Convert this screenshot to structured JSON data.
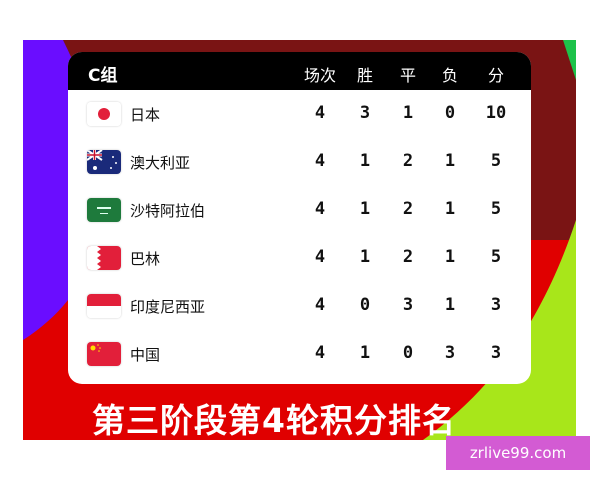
{
  "colors": {
    "header": "#000000",
    "purple": "#6a0dff",
    "dark_red": "#7a1414",
    "red": "#e00000",
    "lime": "#a8e61a",
    "watermark": "#d35bd3"
  },
  "table": {
    "group": "C组",
    "headers": [
      "场次",
      "胜",
      "平",
      "负",
      "分"
    ],
    "rows": [
      {
        "flag": "japan-flag",
        "team": "日本",
        "cells": [
          "4",
          "3",
          "1",
          "0",
          "10"
        ]
      },
      {
        "flag": "australia-flag",
        "team": "澳大利亚",
        "cells": [
          "4",
          "1",
          "2",
          "1",
          "5"
        ]
      },
      {
        "flag": "saudi-arabia-flag",
        "team": "沙特阿拉伯",
        "cells": [
          "4",
          "1",
          "2",
          "1",
          "5"
        ]
      },
      {
        "flag": "bahrain-flag",
        "team": "巴林",
        "cells": [
          "4",
          "1",
          "2",
          "1",
          "5"
        ]
      },
      {
        "flag": "indonesia-flag",
        "team": "印度尼西亚",
        "cells": [
          "4",
          "0",
          "3",
          "1",
          "3"
        ]
      },
      {
        "flag": "china-flag",
        "team": "中国",
        "cells": [
          "4",
          "1",
          "0",
          "3",
          "3"
        ]
      }
    ]
  },
  "caption": "第三阶段第4轮积分排名",
  "watermark": "zrlive99.com"
}
